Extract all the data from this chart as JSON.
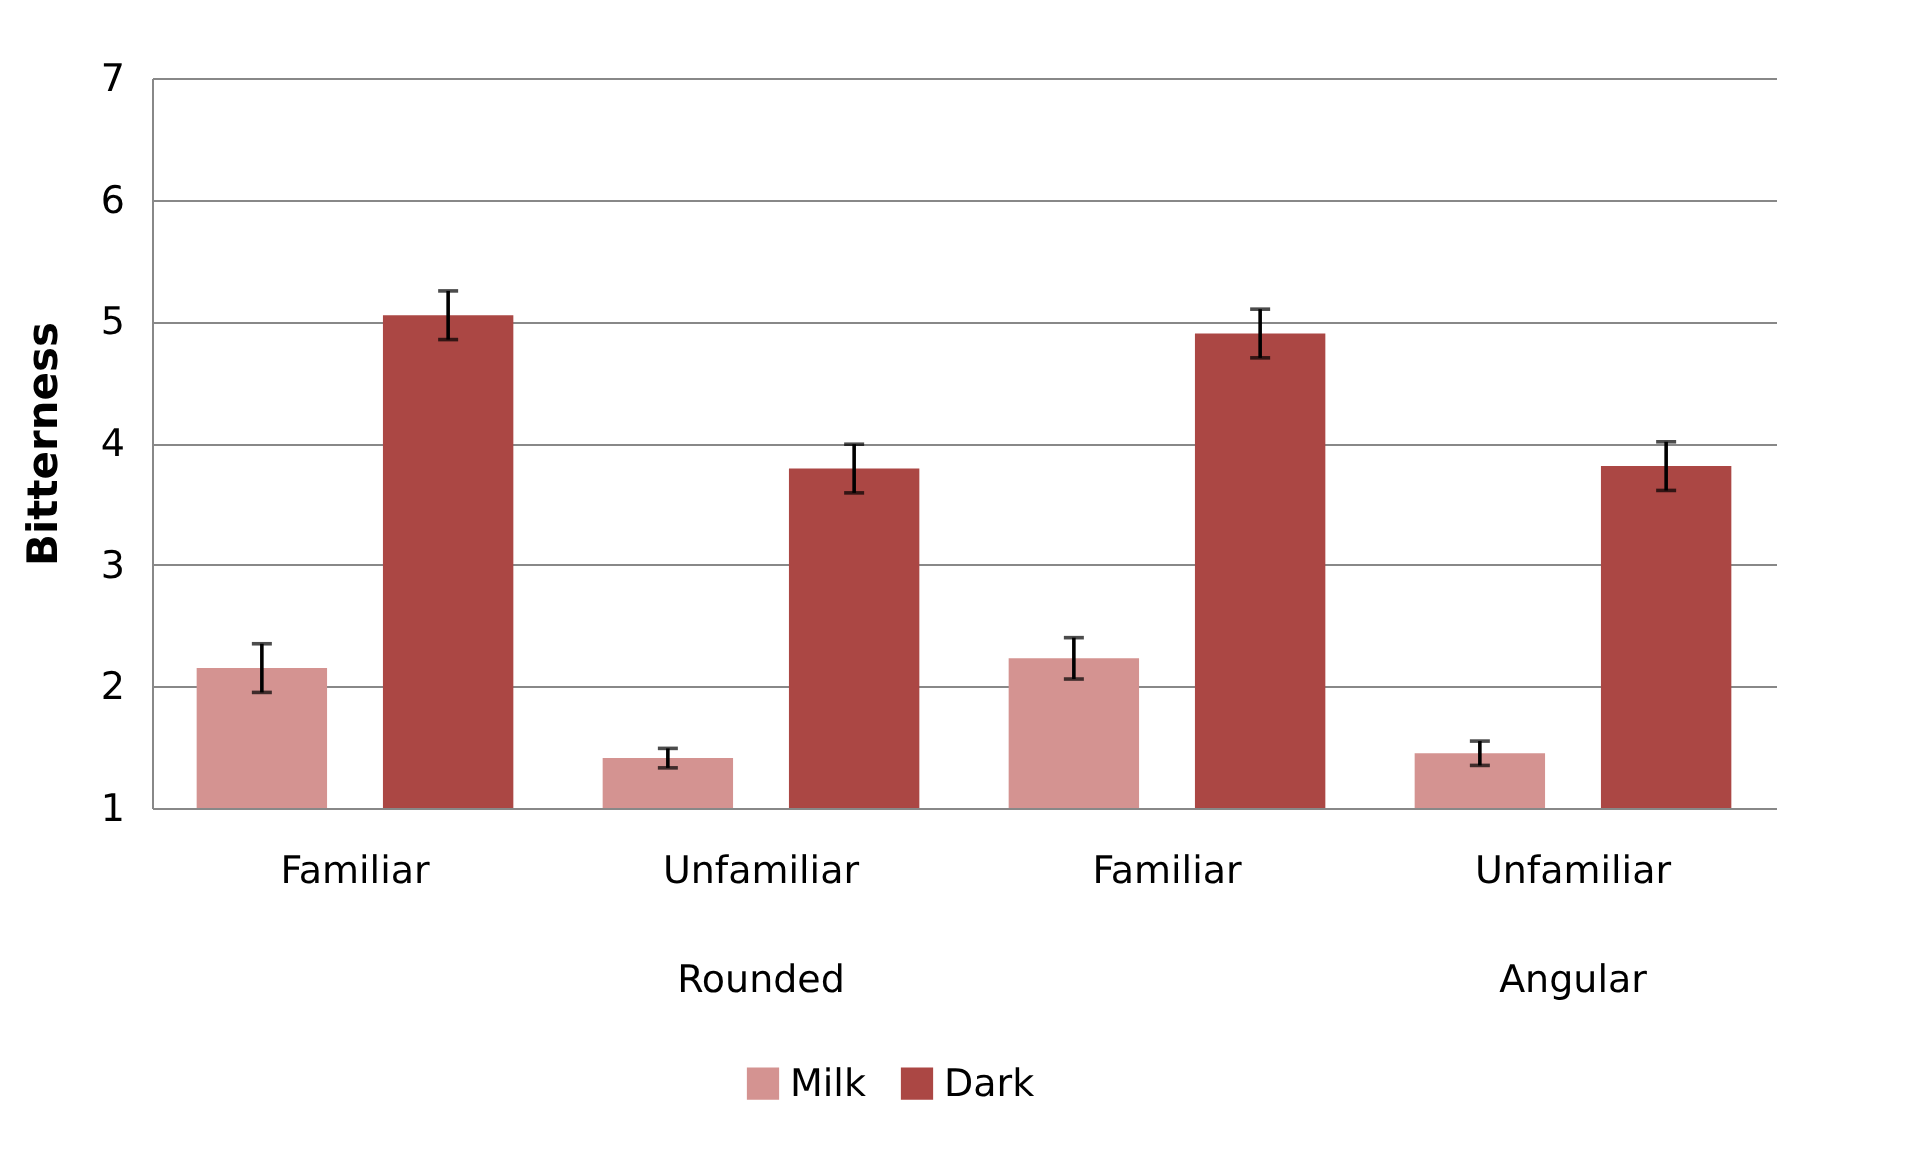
{
  "chart_data": {
    "type": "bar",
    "ylabel": "Bitterness",
    "categories": [
      "Familiar",
      "Unfamiliar",
      "Familiar",
      "Unfamiliar"
    ],
    "series": [
      {
        "name": "Milk",
        "color": "#d49391",
        "values": [
          2.15,
          1.41,
          2.23,
          1.45
        ],
        "errors": [
          0.2,
          0.08,
          0.17,
          0.1
        ]
      },
      {
        "name": "Dark",
        "color": "#ab4744",
        "values": [
          5.05,
          3.79,
          4.9,
          3.81
        ],
        "errors": [
          0.2,
          0.2,
          0.2,
          0.2
        ]
      }
    ],
    "annotations": [
      "Rounded",
      "Angular"
    ],
    "ylim": [
      1,
      7
    ],
    "yticks": [
      1,
      2,
      3,
      4,
      5,
      6,
      7
    ],
    "grid": "y",
    "legend": "bottom"
  }
}
